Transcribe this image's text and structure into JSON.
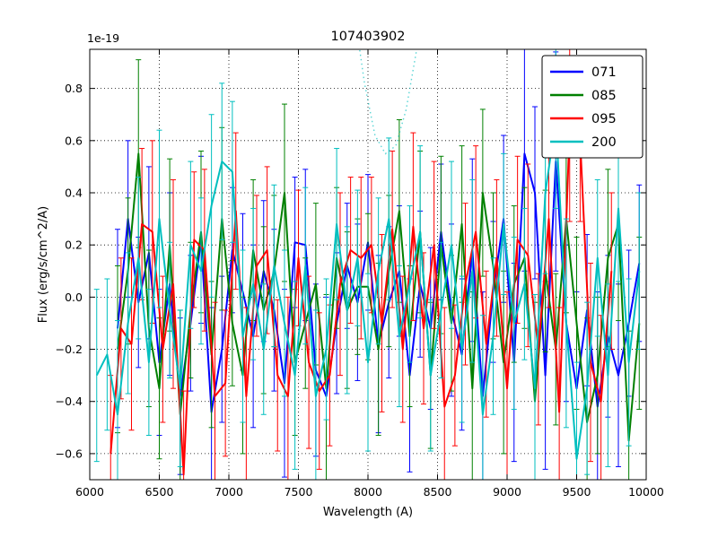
{
  "figure": {
    "title": "107403902",
    "offset_text": "1e-19",
    "xlabel": "Wavelength (A)",
    "ylabel": "Flux (erg/s/cm^2/A)"
  },
  "chart_data": {
    "type": "line",
    "title": "107403902",
    "xlabel": "Wavelength (A)",
    "ylabel": "Flux (erg/s/cm^2/A)",
    "y_offset_label": "1e-19",
    "xlim": [
      6000,
      10000
    ],
    "ylim": [
      -0.7,
      0.95
    ],
    "xticks": [
      6000,
      6500,
      7000,
      7500,
      8000,
      8500,
      9000,
      9500,
      10000
    ],
    "yticks": [
      -0.6,
      -0.4,
      -0.2,
      0.0,
      0.2,
      0.4,
      0.6,
      0.8
    ],
    "grid": true,
    "grid_style": "dotted",
    "legend_position": "upper right",
    "series": [
      {
        "name": "071",
        "color": "#0000ff",
        "x_start": 6200,
        "x_step": 75,
        "values": [
          -0.12,
          0.3,
          -0.02,
          0.17,
          -0.25,
          0.05,
          -0.38,
          -0.1,
          0.22,
          -0.44,
          -0.2,
          0.18,
          0.02,
          -0.15,
          0.1,
          -0.05,
          -0.33,
          0.21,
          0.2,
          -0.28,
          -0.38,
          -0.1,
          0.12,
          -0.02,
          0.21,
          -0.18,
          -0.02,
          0.1,
          -0.3,
          0.05,
          -0.12,
          0.25,
          -0.05,
          -0.22,
          0.18,
          -0.38,
          0.02,
          0.3,
          -0.25,
          0.55,
          0.4,
          -0.3,
          0.52,
          -0.1,
          -0.35,
          -0.05,
          -0.42,
          -0.15,
          -0.3,
          -0.1,
          0.13
        ],
        "errors": [
          0.38,
          0.3,
          0.25,
          0.33,
          0.28,
          0.35,
          0.3,
          0.26,
          0.32,
          0.4,
          0.28,
          0.24,
          0.3,
          0.35,
          0.27,
          0.31,
          0.36,
          0.25,
          0.29,
          0.33,
          0.38,
          0.27,
          0.24,
          0.3,
          0.26,
          0.34,
          0.29,
          0.25,
          0.37,
          0.28,
          0.31,
          0.26,
          0.33,
          0.29,
          0.35,
          0.4,
          0.27,
          0.32,
          0.38,
          0.45,
          0.33,
          0.36,
          0.42,
          0.3,
          0.37,
          0.29,
          0.44,
          0.31,
          0.35,
          0.28,
          0.3
        ]
      },
      {
        "name": "085",
        "color": "#008000",
        "x_start": 6200,
        "x_step": 75,
        "values": [
          -0.2,
          0.1,
          0.55,
          -0.12,
          -0.35,
          0.2,
          -0.45,
          -0.05,
          0.25,
          -0.22,
          0.3,
          -0.1,
          -0.3,
          0.18,
          -0.05,
          0.1,
          0.4,
          -0.25,
          -0.1,
          0.05,
          -0.35,
          0.15,
          -0.05,
          0.04,
          0.04,
          -0.2,
          0.1,
          0.33,
          -0.15,
          0.25,
          -0.3,
          0.2,
          -0.1,
          0.28,
          -0.35,
          0.4,
          0.12,
          -0.25,
          0.05,
          0.15,
          -0.4,
          0.1,
          -0.2,
          0.3,
          -0.1,
          -0.48,
          -0.3,
          0.15,
          0.28,
          -0.55,
          -0.1
        ],
        "errors": [
          0.32,
          0.28,
          0.36,
          0.3,
          0.27,
          0.33,
          0.4,
          0.26,
          0.31,
          0.28,
          0.35,
          0.24,
          0.3,
          0.27,
          0.32,
          0.29,
          0.34,
          0.28,
          0.25,
          0.31,
          0.36,
          0.27,
          0.3,
          0.26,
          0.28,
          0.33,
          0.29,
          0.35,
          0.27,
          0.31,
          0.28,
          0.34,
          0.26,
          0.3,
          0.37,
          0.32,
          0.28,
          0.35,
          0.3,
          0.27,
          0.38,
          0.31,
          0.29,
          0.36,
          0.33,
          0.4,
          0.3,
          0.34,
          0.37,
          0.42,
          0.33
        ]
      },
      {
        "name": "095",
        "color": "#ff0000",
        "x_start": 6150,
        "x_step": 75,
        "values": [
          -0.6,
          -0.12,
          -0.18,
          0.28,
          0.25,
          -0.2,
          0.05,
          -0.68,
          0.22,
          0.18,
          -0.38,
          -0.33,
          0.33,
          -0.38,
          0.12,
          0.18,
          -0.3,
          -0.38,
          0.15,
          -0.25,
          -0.36,
          -0.3,
          0.05,
          0.18,
          0.15,
          0.2,
          -0.1,
          0.26,
          -0.2,
          0.27,
          -0.12,
          0.2,
          -0.42,
          -0.3,
          0.05,
          0.25,
          -0.18,
          0.15,
          -0.35,
          0.22,
          0.16,
          -0.2,
          0.3,
          -0.44,
          0.65,
          0.6,
          -0.25,
          -0.4,
          0.1
        ],
        "errors": [
          0.3,
          0.27,
          0.33,
          0.29,
          0.35,
          0.28,
          0.4,
          0.32,
          0.26,
          0.31,
          0.36,
          0.28,
          0.3,
          0.34,
          0.27,
          0.32,
          0.29,
          0.38,
          0.26,
          0.33,
          0.3,
          0.27,
          0.35,
          0.28,
          0.31,
          0.26,
          0.34,
          0.3,
          0.28,
          0.36,
          0.29,
          0.32,
          0.38,
          0.27,
          0.31,
          0.33,
          0.28,
          0.3,
          0.37,
          0.32,
          0.35,
          0.29,
          0.34,
          0.4,
          0.36,
          0.31,
          0.38,
          0.33,
          0.3
        ]
      },
      {
        "name": "200",
        "color": "#00bfbf",
        "x_start": 6050,
        "x_step": 75,
        "values": [
          -0.3,
          -0.22,
          -0.45,
          -0.1,
          0.15,
          -0.25,
          0.3,
          -0.05,
          -0.35,
          0.2,
          0.1,
          0.35,
          0.52,
          0.48,
          -0.15,
          0.05,
          -0.2,
          0.12,
          -0.1,
          -0.3,
          0.12,
          -0.38,
          -0.2,
          0.28,
          -0.05,
          0.15,
          -0.25,
          0.1,
          0.3,
          -0.15,
          0.05,
          0.25,
          -0.3,
          -0.05,
          0.2,
          -0.2,
          0.1,
          -0.45,
          -0.15,
          0.28,
          -0.1,
          0.05,
          -0.35,
          0.4,
          0.68,
          -0.1,
          -0.62,
          -0.35,
          0.15,
          -0.3,
          0.34,
          -0.25,
          0.1
        ],
        "errors": [
          0.33,
          0.29,
          0.36,
          0.27,
          0.31,
          0.28,
          0.34,
          0.26,
          0.3,
          0.32,
          0.28,
          0.35,
          0.3,
          0.27,
          0.33,
          0.29,
          0.25,
          0.31,
          0.28,
          0.36,
          0.3,
          0.33,
          0.27,
          0.29,
          0.32,
          0.26,
          0.34,
          0.28,
          0.31,
          0.27,
          0.3,
          0.33,
          0.29,
          0.26,
          0.32,
          0.28,
          0.35,
          0.38,
          0.3,
          0.27,
          0.33,
          0.29,
          0.36,
          0.31,
          0.34,
          0.4,
          0.37,
          0.33,
          0.3,
          0.35,
          0.28,
          0.32,
          0.3
        ],
        "dotted_overlay": {
          "x": [
            7900,
            7975,
            8050,
            8125,
            8200,
            8275,
            8350,
            8425
          ],
          "values": [
            1.1,
            0.82,
            0.62,
            0.55,
            0.58,
            0.72,
            0.95,
            1.2
          ]
        }
      }
    ]
  }
}
